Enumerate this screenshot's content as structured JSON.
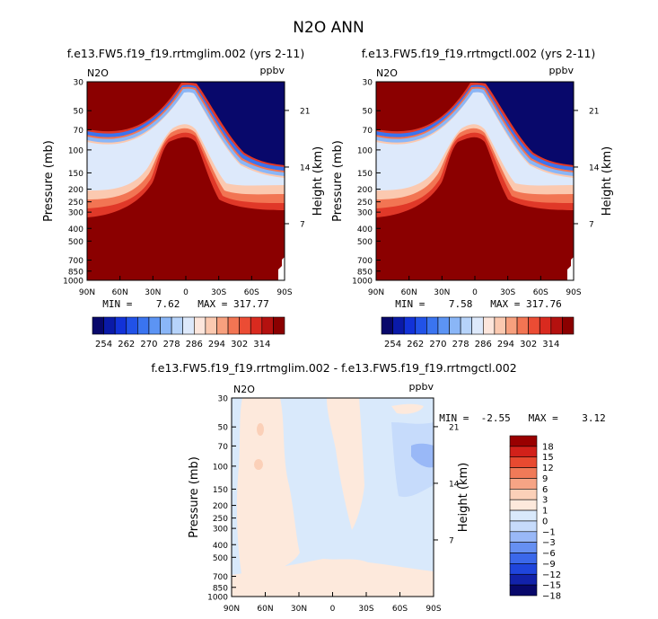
{
  "page": {
    "title": "N2O ANN",
    "colors": {
      "background": "#ffffff",
      "text": "#000000",
      "n2o_palette": [
        "#08086b",
        "#0a1aa8",
        "#1232d8",
        "#2152e8",
        "#3a74f0",
        "#5c94f4",
        "#8ab6f7",
        "#b6d3fa",
        "#dde9fb",
        "#fde6dc",
        "#fbc9b0",
        "#f7a07e",
        "#f27553",
        "#eb4c34",
        "#d92a1f",
        "#b4110f",
        "#8b0000"
      ],
      "diff_palette": [
        "#08086b",
        "#1222aa",
        "#1f45dc",
        "#3b68ea",
        "#6690f2",
        "#99b8f7",
        "#c6dbfb",
        "#d9e9fb",
        "#fde9dc",
        "#fbd0b8",
        "#f6a485",
        "#f07a58",
        "#e84a30",
        "#d2211a",
        "#990000"
      ]
    }
  },
  "chart_data": [
    {
      "type": "heatmap",
      "title": "f.e13.FW5.f19_f19.rrtmglim.002 (yrs 2-11)",
      "variable_label": "N2O",
      "units_label": "ppbv",
      "ylabel": "Pressure (mb)",
      "ylabel_right": "Height (km)",
      "x_ticks": [
        "90N",
        "60N",
        "30N",
        "0",
        "30S",
        "60S",
        "90S"
      ],
      "y_ticks": [
        "30",
        "50",
        "70",
        "100",
        "150",
        "200",
        "250",
        "300",
        "400",
        "500",
        "700",
        "850",
        "1000"
      ],
      "y_ticks_right": [
        "21",
        "14",
        "7"
      ],
      "ylim": [
        1000,
        30
      ],
      "min_max_text": "MIN =    7.62   MAX = 317.77",
      "min": 7.62,
      "max": 317.77,
      "colorbar_labels": [
        "254",
        "262",
        "270",
        "278",
        "286",
        "294",
        "302",
        "314"
      ],
      "colorbar_levels": [
        254,
        314
      ]
    },
    {
      "type": "heatmap",
      "title": "f.e13.FW5.f19_f19.rrtmgctl.002 (yrs 2-11)",
      "variable_label": "N2O",
      "units_label": "ppbv",
      "ylabel": "Pressure (mb)",
      "ylabel_right": "Height (km)",
      "x_ticks": [
        "90N",
        "60N",
        "30N",
        "0",
        "30S",
        "60S",
        "90S"
      ],
      "y_ticks": [
        "30",
        "50",
        "70",
        "100",
        "150",
        "200",
        "250",
        "300",
        "400",
        "500",
        "700",
        "850",
        "1000"
      ],
      "y_ticks_right": [
        "21",
        "14",
        "7"
      ],
      "ylim": [
        1000,
        30
      ],
      "min_max_text": "MIN =    7.58   MAX = 317.76",
      "min": 7.58,
      "max": 317.76,
      "colorbar_labels": [
        "254",
        "262",
        "270",
        "278",
        "286",
        "294",
        "302",
        "314"
      ],
      "colorbar_levels": [
        254,
        314
      ]
    },
    {
      "type": "heatmap",
      "title": "f.e13.FW5.f19_f19.rrtmglim.002 - f.e13.FW5.f19_f19.rrtmgctl.002",
      "variable_label": "N2O",
      "units_label": "ppbv",
      "ylabel": "Pressure (mb)",
      "ylabel_right": "Height (km)",
      "x_ticks": [
        "90N",
        "60N",
        "30N",
        "0",
        "30S",
        "60S",
        "90S"
      ],
      "y_ticks": [
        "30",
        "50",
        "70",
        "100",
        "150",
        "200",
        "250",
        "300",
        "400",
        "500",
        "700",
        "850",
        "1000"
      ],
      "y_ticks_right": [
        "21",
        "14",
        "7"
      ],
      "ylim": [
        1000,
        30
      ],
      "min_max_text": "MIN =  -2.55   MAX =    3.12",
      "min": -2.55,
      "max": 3.12,
      "colorbar_labels": [
        "18",
        "15",
        "12",
        "9",
        "6",
        "3",
        "1",
        "0",
        "-1",
        "-3",
        "-6",
        "-9",
        "-12",
        "-15",
        "-18"
      ],
      "colorbar_levels": [
        -18,
        -15,
        -12,
        -9,
        -6,
        -3,
        -1,
        0,
        1,
        3,
        6,
        9,
        12,
        15,
        18
      ]
    }
  ]
}
